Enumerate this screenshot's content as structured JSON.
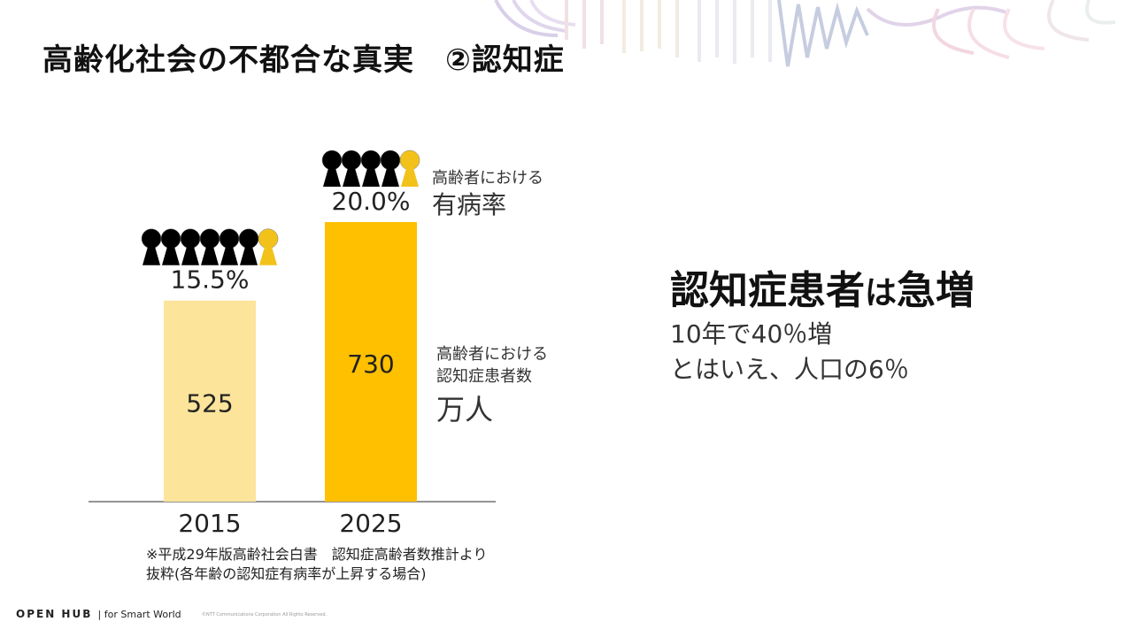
{
  "title": "高齢化社会の不都合な真実　②認知症",
  "chart_data": {
    "type": "bar",
    "categories": [
      "2015",
      "2025"
    ],
    "values": [
      525,
      730
    ],
    "value_labels": [
      "525",
      "730"
    ],
    "prevalence_labels": [
      "15.5%",
      "20.0%"
    ],
    "prevalence": [
      15.5,
      20.0
    ],
    "icons_total": [
      7,
      5
    ],
    "icons_highlighted": [
      1,
      1
    ],
    "colors": [
      "#FCE49B",
      "#FFC000"
    ],
    "icon_color": "#000000",
    "icon_highlight_color": "#F2C21B",
    "series_label_small": "高齢者における",
    "prevalence_label": "有病率",
    "count_label_line1": "高齢者における",
    "count_label_line2": "認知症患者数",
    "unit_label": "万人"
  },
  "note": {
    "line1": "※平成29年版高齢社会白書　認知症高齢者数推計より",
    "line2": "抜粋(各年齢の認知症有病率が上昇する場合)"
  },
  "right": {
    "headline_a": "認知症患者",
    "headline_b": "は",
    "headline_c": "急増",
    "line1": "10年で40％増",
    "line2": "とはいえ、人口の6％"
  },
  "footer": {
    "brand": "OPEN HUB",
    "tagline": "|  for Smart World",
    "copyright": "©NTT Communications Corporation All Rights Reserved."
  }
}
